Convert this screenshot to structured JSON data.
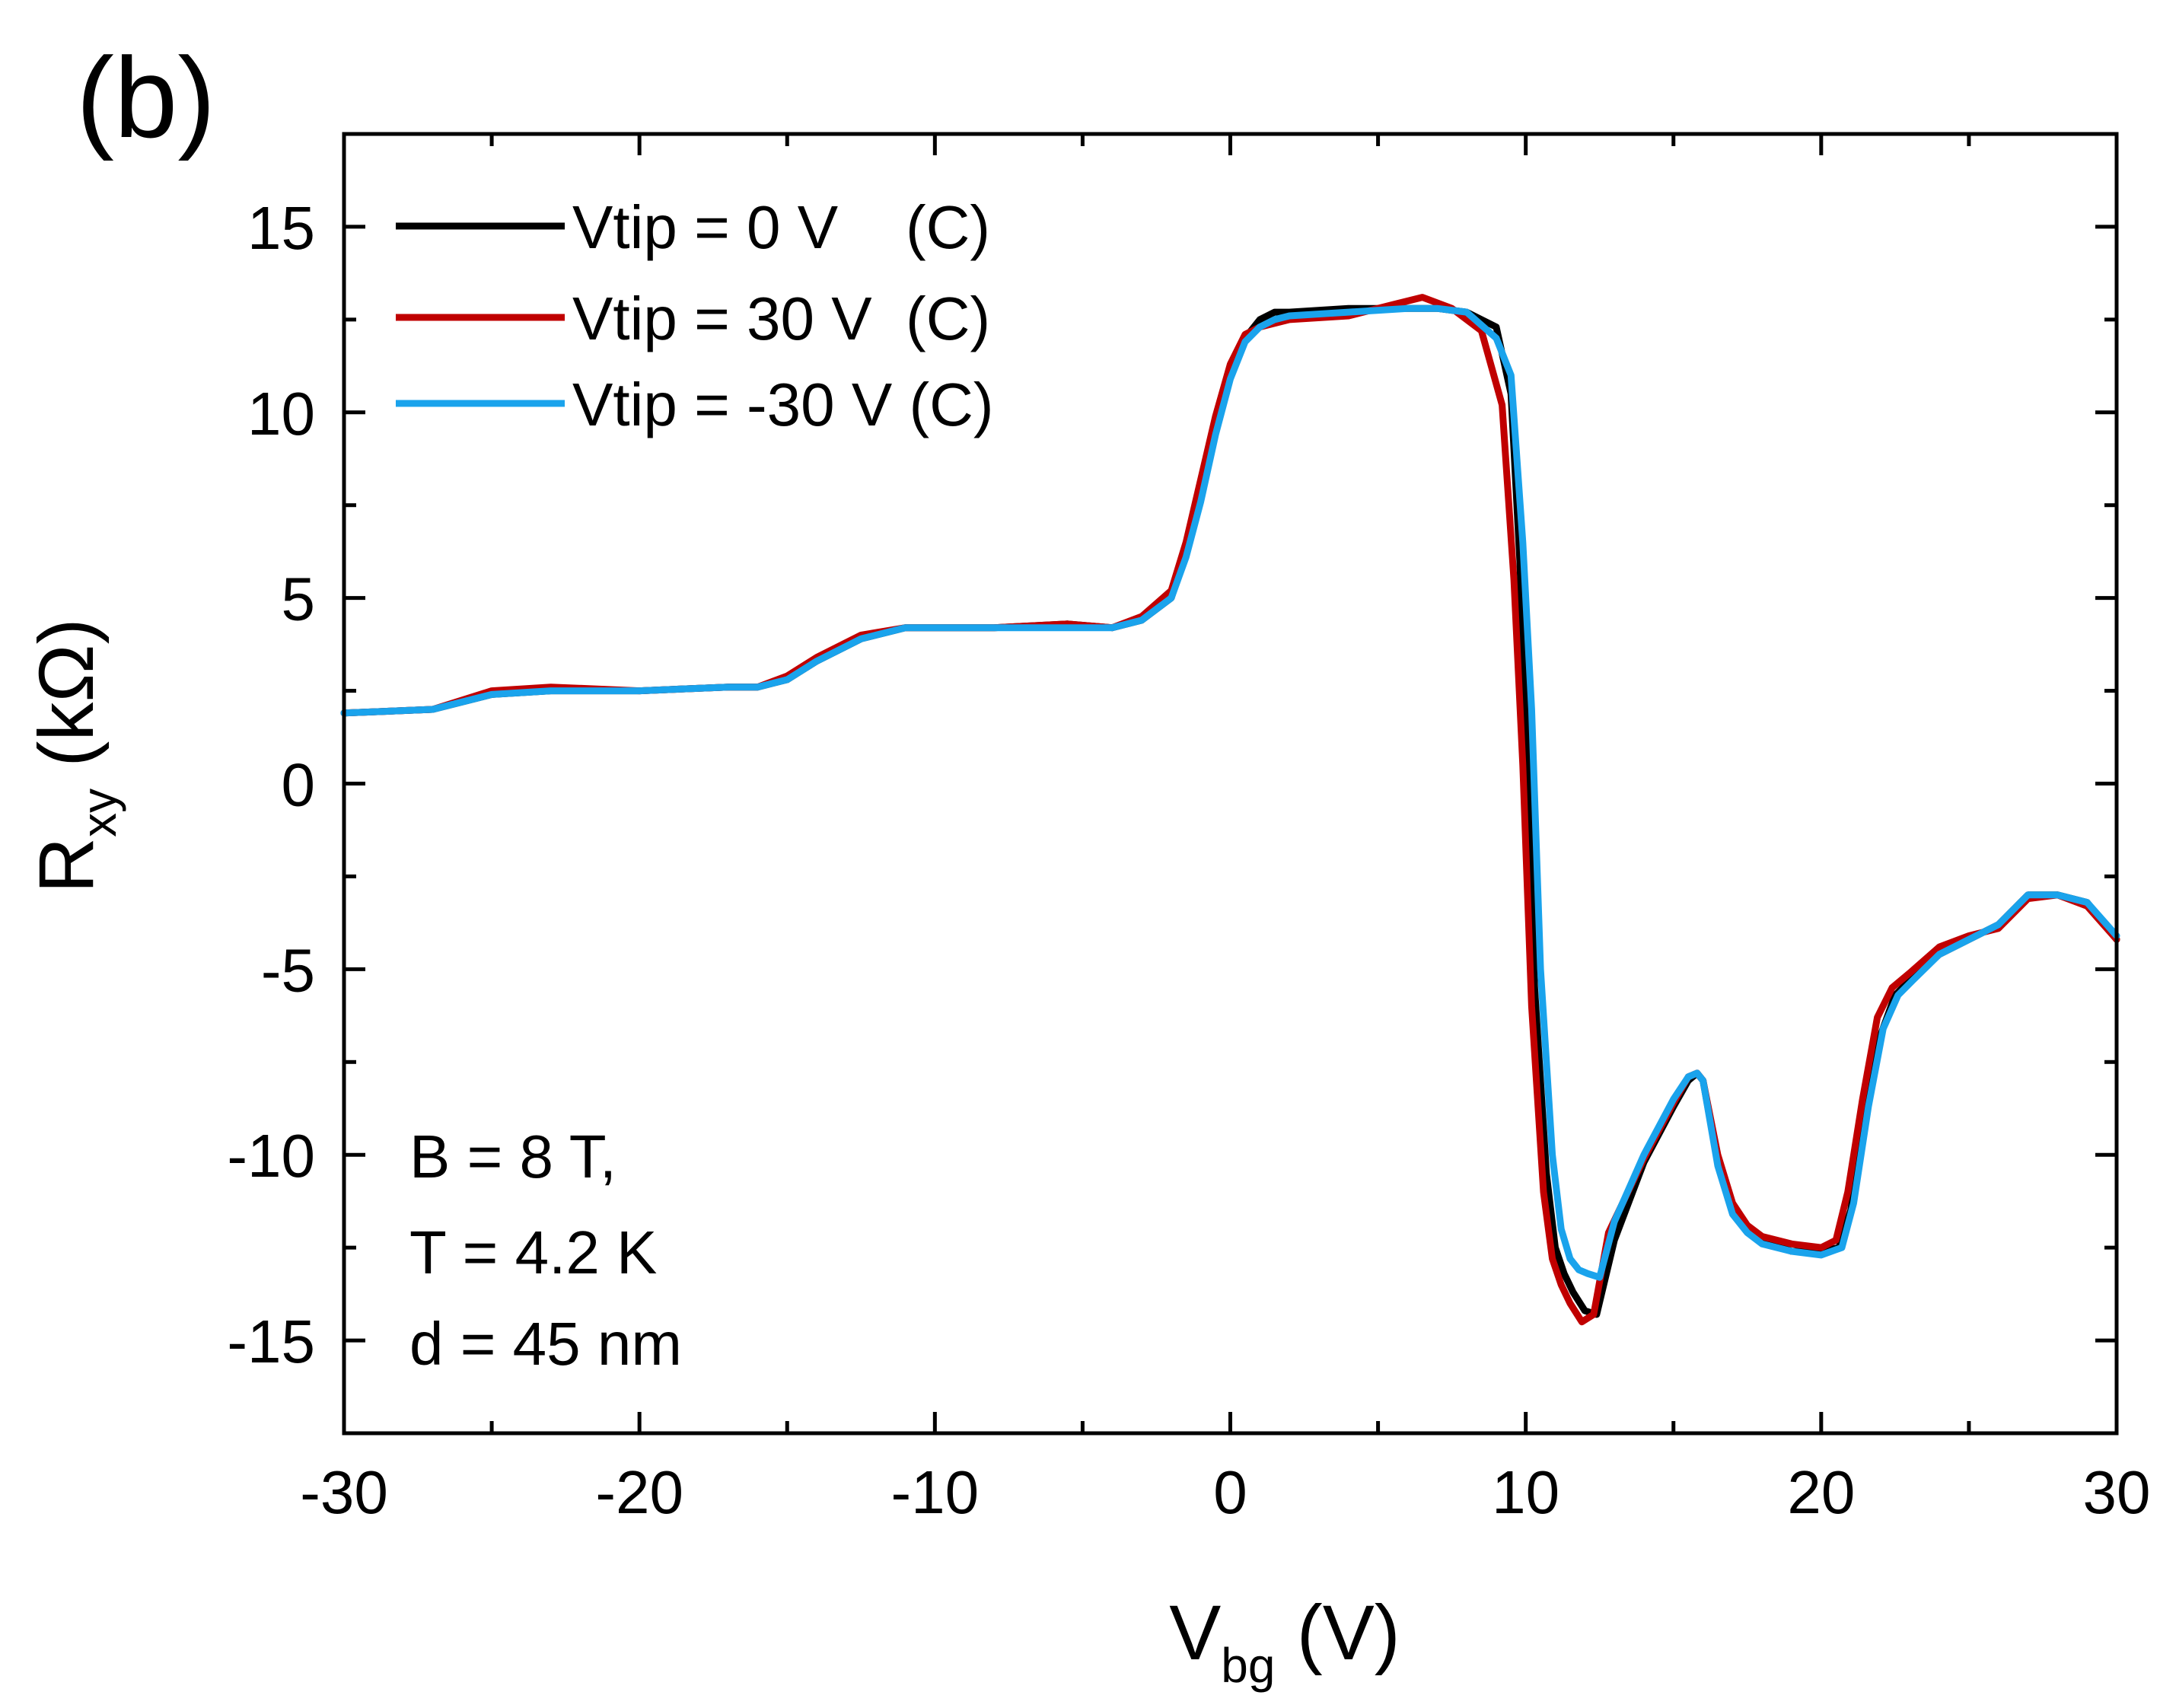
{
  "panel_label": "(b)",
  "annotations": [
    "B = 8 T,",
    "T = 4.2 K",
    "d = 45 nm"
  ],
  "chart_data": {
    "type": "line",
    "title": "",
    "xlabel_main": "V",
    "xlabel_sub": "bg",
    "xlabel_unit": " (V)",
    "ylabel_main": "R",
    "ylabel_sub": "xy",
    "ylabel_unit": " (kΩ)",
    "xlim": [
      -30,
      30
    ],
    "ylim": [
      -17.5,
      17.5
    ],
    "xticks": [
      -30,
      -20,
      -10,
      0,
      10,
      20,
      30
    ],
    "xtick_labels": [
      "-30",
      "-20",
      "-10",
      "0",
      "10",
      "20",
      "30"
    ],
    "yticks": [
      -15,
      -10,
      -5,
      0,
      5,
      10,
      15
    ],
    "ytick_labels": [
      "-15",
      "-10",
      "-5",
      "0",
      "5",
      "10",
      "15"
    ],
    "grid": false,
    "legend_position": "top-left",
    "series": [
      {
        "name": "Vtip = 0 V    (C)",
        "color": "#000000",
        "x": [
          -30,
          -27,
          -25,
          -23,
          -20,
          -17,
          -16,
          -15,
          -14,
          -12.5,
          -11,
          -8,
          -5.5,
          -4,
          -3,
          -2,
          -1.5,
          -1,
          -0.5,
          0,
          0.5,
          1,
          1.5,
          2,
          4,
          6,
          7,
          8,
          9,
          9.5,
          9.8,
          10,
          10.3,
          10.7,
          11,
          11.3,
          11.6,
          12,
          12.4,
          13,
          14,
          15,
          15.5,
          15.8,
          16,
          16.5,
          17,
          17.5,
          18,
          19,
          20,
          20.6,
          21,
          21.5,
          22,
          22.5,
          23,
          24,
          25,
          26,
          27,
          28,
          29,
          30
        ],
        "y": [
          1.9,
          2.0,
          2.4,
          2.5,
          2.5,
          2.6,
          2.6,
          2.8,
          3.3,
          3.9,
          4.2,
          4.2,
          4.3,
          4.2,
          4.4,
          5.0,
          6.2,
          7.8,
          9.6,
          11.1,
          12.0,
          12.5,
          12.7,
          12.7,
          12.8,
          12.8,
          12.8,
          12.7,
          12.3,
          10.5,
          6.0,
          1.5,
          -5.5,
          -10.5,
          -12.5,
          -13.2,
          -13.7,
          -14.2,
          -14.3,
          -12.3,
          -10.2,
          -8.7,
          -8.0,
          -7.8,
          -8.0,
          -10.2,
          -11.5,
          -12.0,
          -12.3,
          -12.6,
          -12.6,
          -12.5,
          -11.5,
          -9.0,
          -6.8,
          -5.7,
          -5.3,
          -4.6,
          -4.2,
          -3.8,
          -3.0,
          -3.0,
          -3.2,
          -4.2
        ]
      },
      {
        "name": "Vtip = 30 V  (C)",
        "color": "#c00000",
        "x": [
          -30,
          -27,
          -25,
          -23,
          -20,
          -17,
          -16,
          -15,
          -14,
          -12.5,
          -11,
          -8,
          -5.5,
          -4,
          -3,
          -2,
          -1.5,
          -1,
          -0.5,
          0,
          0.5,
          1,
          1.5,
          2,
          4,
          5.5,
          6.5,
          7.5,
          8.5,
          9.2,
          9.6,
          9.9,
          10.2,
          10.6,
          10.9,
          11.2,
          11.5,
          11.9,
          12.3,
          12.8,
          14,
          15,
          15.5,
          15.8,
          16,
          16.5,
          17,
          17.5,
          18,
          19,
          20,
          20.5,
          20.9,
          21.4,
          21.9,
          22.4,
          23,
          24,
          25,
          26,
          27,
          28,
          29,
          30
        ],
        "y": [
          1.9,
          2.0,
          2.5,
          2.6,
          2.5,
          2.6,
          2.6,
          2.9,
          3.4,
          4.0,
          4.2,
          4.2,
          4.3,
          4.2,
          4.5,
          5.2,
          6.5,
          8.2,
          9.9,
          11.3,
          12.1,
          12.3,
          12.4,
          12.5,
          12.6,
          12.9,
          13.1,
          12.8,
          12.2,
          10.2,
          5.5,
          0.5,
          -6.0,
          -11.0,
          -12.8,
          -13.5,
          -14.0,
          -14.5,
          -14.3,
          -12.1,
          -10.1,
          -8.6,
          -7.9,
          -7.8,
          -8.0,
          -10.0,
          -11.3,
          -11.9,
          -12.2,
          -12.4,
          -12.5,
          -12.3,
          -11.0,
          -8.5,
          -6.3,
          -5.5,
          -5.1,
          -4.4,
          -4.1,
          -3.9,
          -3.1,
          -3.0,
          -3.3,
          -4.2
        ]
      },
      {
        "name": "Vtip = -30 V (C)",
        "color": "#1aa3ec",
        "x": [
          -30,
          -27,
          -25,
          -23,
          -20,
          -17,
          -16,
          -15,
          -14,
          -12.5,
          -11,
          -8,
          -5.5,
          -4,
          -3,
          -2,
          -1.5,
          -1,
          -0.5,
          0,
          0.5,
          1,
          1.5,
          2,
          4,
          6,
          7,
          8,
          9,
          9.5,
          9.9,
          10.2,
          10.5,
          10.9,
          11.2,
          11.5,
          11.8,
          12.1,
          12.5,
          13,
          14,
          15,
          15.5,
          15.8,
          16,
          16.5,
          17,
          17.5,
          18,
          19,
          20,
          20.7,
          21.1,
          21.6,
          22.1,
          22.6,
          23.1,
          24,
          25,
          26,
          27,
          28,
          29,
          30
        ],
        "y": [
          1.9,
          2.0,
          2.4,
          2.5,
          2.5,
          2.6,
          2.6,
          2.8,
          3.3,
          3.9,
          4.2,
          4.2,
          4.2,
          4.2,
          4.4,
          5.0,
          6.1,
          7.6,
          9.4,
          10.9,
          11.9,
          12.3,
          12.5,
          12.6,
          12.7,
          12.8,
          12.8,
          12.7,
          12.0,
          11.0,
          6.5,
          2.0,
          -5.0,
          -10.0,
          -12.0,
          -12.8,
          -13.1,
          -13.2,
          -13.3,
          -11.8,
          -10.0,
          -8.5,
          -7.9,
          -7.8,
          -8.0,
          -10.3,
          -11.6,
          -12.1,
          -12.4,
          -12.6,
          -12.7,
          -12.5,
          -11.3,
          -8.7,
          -6.6,
          -5.7,
          -5.3,
          -4.6,
          -4.2,
          -3.8,
          -3.0,
          -3.0,
          -3.2,
          -4.1
        ]
      }
    ]
  }
}
